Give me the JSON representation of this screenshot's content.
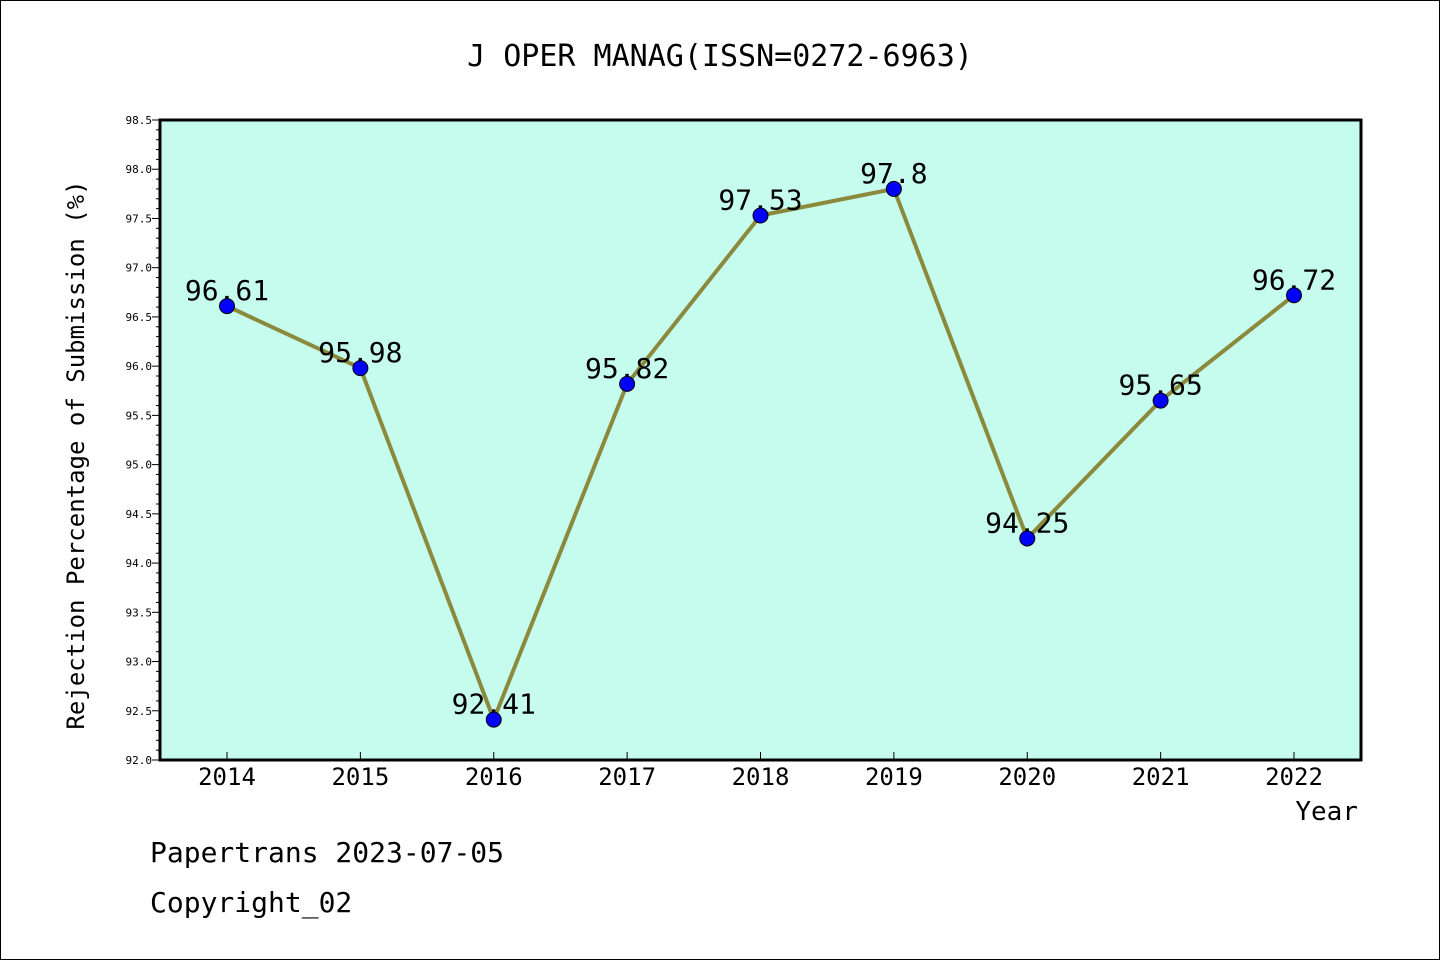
{
  "chart_data": {
    "type": "line",
    "title": "J OPER MANAG(ISSN=0272-6963)",
    "xlabel": "Year",
    "ylabel": "Rejection Percentage of Submission (%)",
    "categories": [
      "2014",
      "2015",
      "2016",
      "2017",
      "2018",
      "2019",
      "2020",
      "2021",
      "2022"
    ],
    "series": [
      {
        "values": [
          96.61,
          95.98,
          92.41,
          95.82,
          97.53,
          97.8,
          94.25,
          95.65,
          96.72
        ]
      }
    ],
    "data_labels": [
      "96.61",
      "95.98",
      "92.41",
      "95.82",
      "97.53",
      "97.8",
      "94.25",
      "95.65",
      "96.72"
    ],
    "ylim": [
      92.0,
      98.5
    ],
    "yticks": [
      "92.0",
      "92.5",
      "93.0",
      "93.5",
      "94.0",
      "94.5",
      "95.0",
      "95.5",
      "96.0",
      "96.5",
      "97.0",
      "97.5",
      "98.0",
      "98.5"
    ],
    "grid": false,
    "colors": {
      "plot_background": "#c6fcee",
      "line": "#8b8a3c",
      "marker": "#0000ff"
    }
  },
  "footer": {
    "source": "Papertrans 2023-07-05",
    "copyright": "Copyright_02"
  }
}
